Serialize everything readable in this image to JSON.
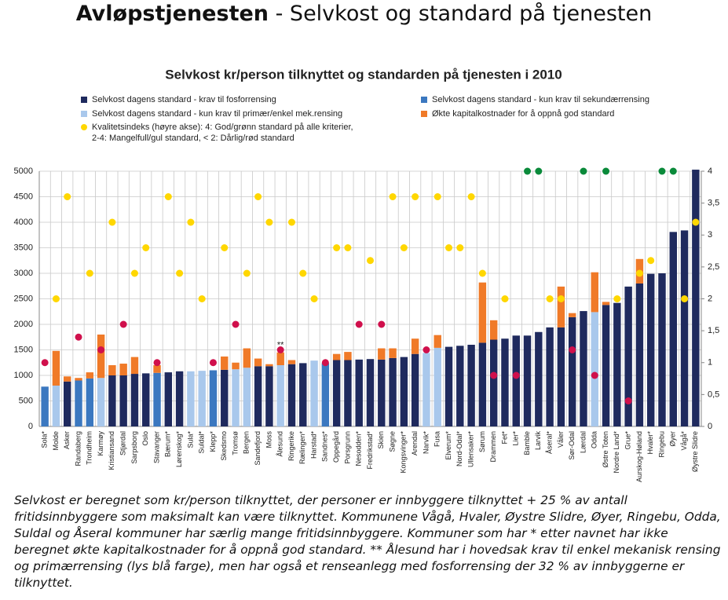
{
  "header": {
    "title_bold": "Avløpstjenesten",
    "title_rest": "- Selvkost og standard på tjenesten"
  },
  "footnote": "Selvkost er beregnet som kr/person tilknyttet, der personer er innbyggere tilknyttet + 25 % av antall fritidsinnbyggere som maksimalt kan være tilknyttet. Kommunene Vågå, Hvaler, Øystre Slidre, Øyer, Ringebu, Odda, Suldal og Åseral kommuner har særlig mange fritidsinnbyggere. Kommuner som har * etter navnet har ikke beregnet økte kapitalkostnader for å oppnå god standard. ** Ålesund har i hovedsak krav til enkel mekanisk rensing og primærrensing (lys blå farge), men har også et renseanlegg med fosforrensing der 32 % av innbyggerne er tilknyttet.",
  "chart_data": {
    "type": "bar",
    "stacked": true,
    "grid": true,
    "title": "Selvkost kr/person tilknyttet og standarden på tjenesten i 2010",
    "categories": [
      "Sola*",
      "Molde",
      "Asker",
      "Randaberg",
      "Trondheim",
      "Karmøy",
      "Kristiansand",
      "Stjørdal",
      "Sarpsborg",
      "Oslo",
      "Stavanger",
      "Bærum*",
      "Lørenskog*",
      "Sula*",
      "Suldal*",
      "Klepp*",
      "Skedsmo",
      "Tromsø",
      "Bergen",
      "Sandefjord",
      "Moss",
      "Ålesund",
      "Ringerike",
      "Rælingen*",
      "Harstad*",
      "Sandnes*",
      "Oppegård",
      "Porsgrunn",
      "Nesodden*",
      "Fredrikstad*",
      "Skien",
      "Søgne",
      "Kongsvinger*",
      "Arendal",
      "Narvik*",
      "Fusa",
      "Elverum*",
      "Nord-Odal*",
      "Ullensaker*",
      "Sørum",
      "Drammen",
      "Fet*",
      "Lier*",
      "Bamble",
      "Larvik",
      "Åseral*",
      "Våler",
      "Sør-Odal",
      "Lærdal",
      "Odda",
      "Østre Toten",
      "Nordre Land*",
      "Grue*",
      "Aurskog-Høland",
      "Hvaler*",
      "Ringebu",
      "Øyer",
      "Vågå*",
      "Øystre Slidre"
    ],
    "ylim": [
      0,
      5000
    ],
    "yticks": [
      0,
      500,
      1000,
      1500,
      2000,
      2500,
      3000,
      3500,
      4000,
      4500,
      5000
    ],
    "y2lim": [
      0,
      4
    ],
    "y2ticks": [
      0,
      {
        "value": 0.5,
        "label": "0,5"
      },
      1,
      {
        "value": 1.5,
        "label": "1,5"
      },
      2,
      {
        "value": 2.5,
        "label": "2,5"
      },
      3,
      {
        "value": 3.5,
        "label": "3,5"
      },
      4
    ],
    "annotations": [
      {
        "text": "**",
        "category": "Ålesund"
      }
    ],
    "series": [
      {
        "name": "Selvkost dagens standard - krav til fosforrensing",
        "color": "#1f2a5e",
        "values": [
          null,
          null,
          880,
          null,
          null,
          null,
          1000,
          1000,
          1030,
          1040,
          null,
          1060,
          1080,
          null,
          null,
          null,
          1110,
          null,
          null,
          1180,
          1180,
          null,
          1220,
          1240,
          null,
          null,
          1300,
          1300,
          1310,
          1320,
          1310,
          1340,
          1360,
          1420,
          null,
          null,
          1560,
          1580,
          1600,
          1640,
          1700,
          1720,
          1780,
          1780,
          1850,
          1940,
          1940,
          2140,
          2260,
          null,
          2380,
          2420,
          2740,
          2800,
          2990,
          3000,
          3810,
          3840,
          5030
        ]
      },
      {
        "name": "Selvkost dagens standard -  kun krav til sekundærrensing",
        "color": "#3b78c0",
        "values": [
          780,
          null,
          null,
          900,
          940,
          null,
          null,
          null,
          null,
          null,
          1050,
          null,
          null,
          null,
          null,
          1100,
          null,
          null,
          null,
          null,
          null,
          null,
          null,
          null,
          null,
          1240,
          null,
          null,
          null,
          null,
          null,
          null,
          null,
          null,
          null,
          null,
          null,
          null,
          null,
          null,
          null,
          null,
          null,
          null,
          null,
          null,
          null,
          null,
          null,
          null,
          null,
          null,
          null,
          null,
          null,
          null,
          null,
          null,
          null
        ]
      },
      {
        "name": "Selvkost dagens standard  - kun krav til primær/enkel mek.rensing",
        "color": "#a9c8ec",
        "values": [
          null,
          800,
          null,
          null,
          null,
          950,
          null,
          null,
          null,
          null,
          null,
          null,
          null,
          1080,
          1090,
          null,
          null,
          1120,
          1150,
          null,
          null,
          1200,
          null,
          null,
          1290,
          null,
          null,
          null,
          null,
          null,
          null,
          null,
          null,
          null,
          1440,
          1540,
          null,
          null,
          null,
          null,
          null,
          null,
          null,
          null,
          null,
          null,
          null,
          null,
          null,
          2240,
          null,
          null,
          null,
          null,
          null,
          null,
          null,
          null,
          null
        ]
      },
      {
        "name": "Økte kapitalkostnader for å oppnå god standard",
        "color": "#f07a28",
        "values": [
          null,
          680,
          100,
          50,
          120,
          850,
          200,
          230,
          330,
          null,
          150,
          null,
          null,
          null,
          null,
          null,
          260,
          130,
          380,
          150,
          40,
          250,
          80,
          null,
          null,
          null,
          120,
          160,
          null,
          null,
          220,
          190,
          null,
          300,
          null,
          250,
          null,
          null,
          null,
          1180,
          380,
          null,
          null,
          null,
          null,
          null,
          800,
          80,
          null,
          780,
          60,
          null,
          null,
          480,
          null,
          null,
          null,
          null,
          null
        ]
      },
      {
        "name": "Kvalitetsindeks (høyre akse): 4: God/grønn standard på alle kriterier,\n2-4: Mangelfull/gul standard, < 2: Dårlig/rød standard",
        "type": "scatter",
        "axis": "y2",
        "color": "#ffd700",
        "values": [
          1,
          2,
          3.6,
          1.4,
          2.4,
          1.2,
          3.2,
          1.6,
          2.4,
          2.8,
          1,
          3.6,
          2.4,
          3.2,
          2,
          1,
          2.8,
          1.6,
          2.4,
          3.6,
          3.2,
          1.2,
          3.2,
          2.4,
          2,
          1,
          2.8,
          2.8,
          1.6,
          2.6,
          1.6,
          3.6,
          2.8,
          3.6,
          1.2,
          3.6,
          2.8,
          2.8,
          3.6,
          2.4,
          0.8,
          2,
          0.8,
          4,
          4,
          2,
          2,
          1.2,
          4,
          0.8,
          4,
          2,
          0.4,
          2.4,
          2.6,
          4,
          4,
          2,
          3.2
        ],
        "point_colors": [
          "#d0104c",
          "#ffd700",
          "#ffd700",
          "#d0104c",
          "#ffd700",
          "#d0104c",
          "#ffd700",
          "#d0104c",
          "#ffd700",
          "#ffd700",
          "#d0104c",
          "#ffd700",
          "#ffd700",
          "#ffd700",
          "#ffd700",
          "#d0104c",
          "#ffd700",
          "#d0104c",
          "#ffd700",
          "#ffd700",
          "#ffd700",
          "#d0104c",
          "#ffd700",
          "#ffd700",
          "#ffd700",
          "#d0104c",
          "#ffd700",
          "#ffd700",
          "#d0104c",
          "#ffd700",
          "#d0104c",
          "#ffd700",
          "#ffd700",
          "#ffd700",
          "#d0104c",
          "#ffd700",
          "#ffd700",
          "#ffd700",
          "#ffd700",
          "#ffd700",
          "#d0104c",
          "#ffd700",
          "#d0104c",
          "#0a8a3a",
          "#0a8a3a",
          "#ffd700",
          "#ffd700",
          "#d0104c",
          "#0a8a3a",
          "#d0104c",
          "#0a8a3a",
          "#ffd700",
          "#d0104c",
          "#ffd700",
          "#ffd700",
          "#0a8a3a",
          "#0a8a3a",
          "#ffd700",
          "#ffd700"
        ]
      }
    ]
  }
}
